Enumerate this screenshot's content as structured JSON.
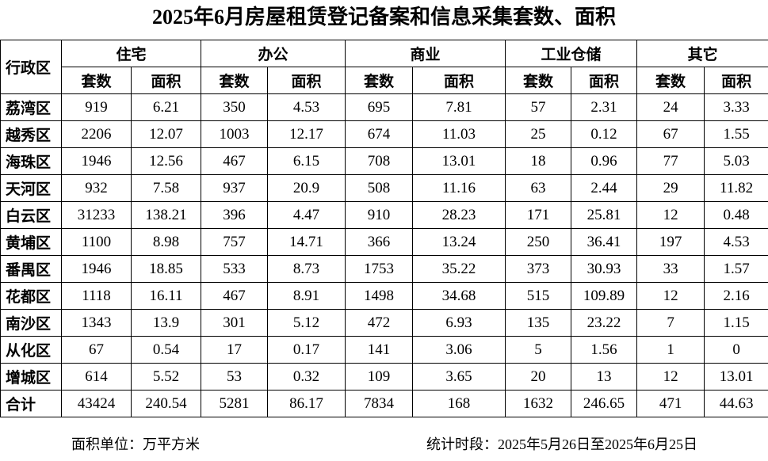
{
  "title": "2025年6月房屋租赁登记备案和信息采集套数、面积",
  "table": {
    "corner": "行政区",
    "groups": [
      {
        "name": "住宅",
        "sub": [
          "套数",
          "面积"
        ]
      },
      {
        "name": "办公",
        "sub": [
          "套数",
          "面积"
        ]
      },
      {
        "name": "商业",
        "sub": [
          "套数",
          "面积"
        ]
      },
      {
        "name": "工业仓储",
        "sub": [
          "套数",
          "面积"
        ]
      },
      {
        "name": "其它",
        "sub": [
          "套数",
          "面积"
        ]
      }
    ],
    "rows": [
      {
        "district": "荔湾区",
        "values": [
          919,
          6.21,
          350,
          4.53,
          695,
          7.81,
          57,
          2.31,
          24,
          3.33
        ]
      },
      {
        "district": "越秀区",
        "values": [
          2206,
          12.07,
          1003,
          12.17,
          674,
          11.03,
          25,
          0.12,
          67,
          1.55
        ]
      },
      {
        "district": "海珠区",
        "values": [
          1946,
          12.56,
          467,
          6.15,
          708,
          13.01,
          18,
          0.96,
          77,
          5.03
        ]
      },
      {
        "district": "天河区",
        "values": [
          932,
          7.58,
          937,
          20.9,
          508,
          11.16,
          63,
          2.44,
          29,
          11.82
        ]
      },
      {
        "district": "白云区",
        "values": [
          31233,
          138.21,
          396,
          4.47,
          910,
          28.23,
          171,
          25.81,
          12,
          0.48
        ]
      },
      {
        "district": "黄埔区",
        "values": [
          1100,
          8.98,
          757,
          14.71,
          366,
          13.24,
          250,
          36.41,
          197,
          4.53
        ]
      },
      {
        "district": "番禺区",
        "values": [
          1946,
          18.85,
          533,
          8.73,
          1753,
          35.22,
          373,
          30.93,
          33,
          1.57
        ]
      },
      {
        "district": "花都区",
        "values": [
          1118,
          16.11,
          467,
          8.91,
          1498,
          34.68,
          515,
          109.89,
          12,
          2.16
        ]
      },
      {
        "district": "南沙区",
        "values": [
          1343,
          13.9,
          301,
          5.12,
          472,
          6.93,
          135,
          23.22,
          7,
          1.15
        ]
      },
      {
        "district": "从化区",
        "values": [
          67,
          0.54,
          17,
          0.17,
          141,
          3.06,
          5,
          1.56,
          1,
          0
        ]
      },
      {
        "district": "增城区",
        "values": [
          614,
          5.52,
          53,
          0.32,
          109,
          3.65,
          20,
          13,
          12,
          13.01
        ]
      },
      {
        "district": "合计",
        "values": [
          43424,
          240.54,
          5281,
          86.17,
          7834,
          168,
          1632,
          246.65,
          471,
          44.63
        ]
      }
    ]
  },
  "footer": {
    "unit": "面积单位：万平方米",
    "period": "统计时段：2025年5月26日至2025年6月25日"
  }
}
